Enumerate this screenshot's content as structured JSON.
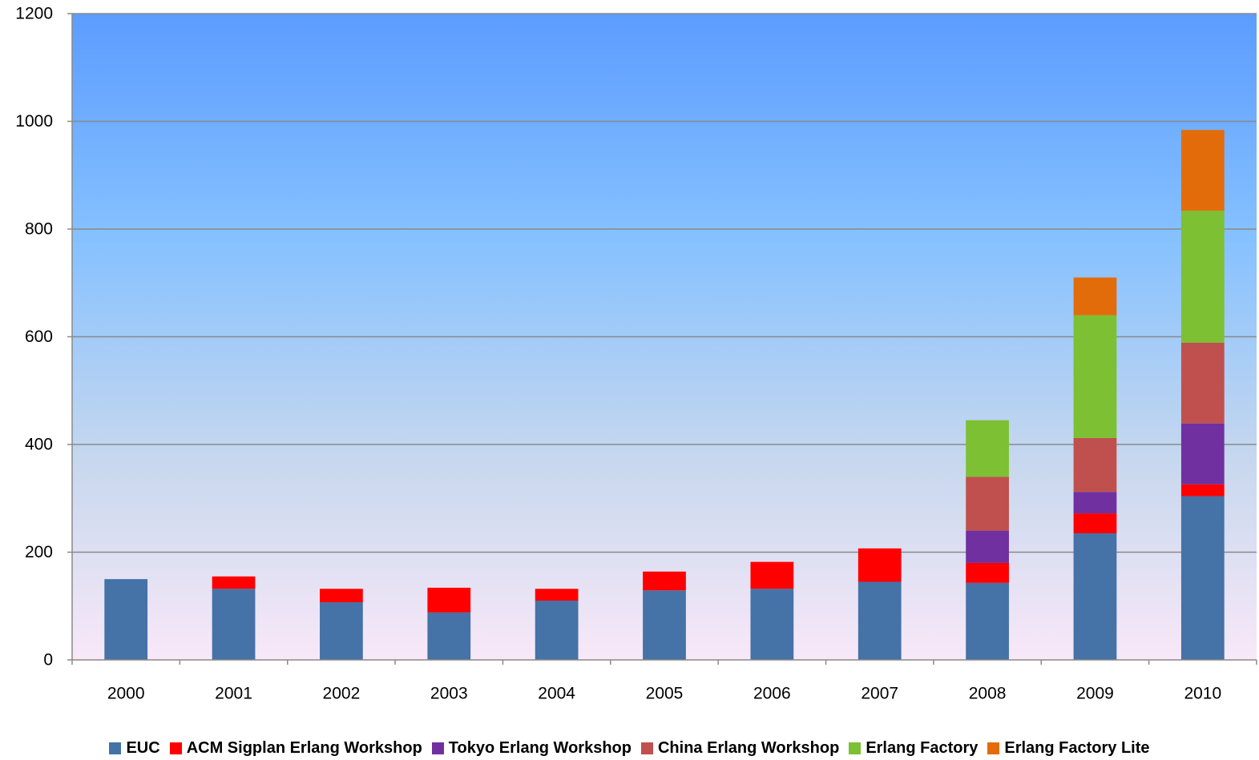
{
  "chart_data": {
    "type": "bar",
    "stacked": true,
    "categories": [
      "2000",
      "2001",
      "2002",
      "2003",
      "2004",
      "2005",
      "2006",
      "2007",
      "2008",
      "2009",
      "2010"
    ],
    "series": [
      {
        "name": "EUC",
        "color": "#4572A7",
        "values": [
          150,
          132,
          107,
          88,
          110,
          129,
          132,
          145,
          143,
          235,
          304
        ]
      },
      {
        "name": "ACM Sigplan Erlang Workshop",
        "color": "#FF0000",
        "values": [
          0,
          23,
          25,
          46,
          22,
          35,
          50,
          62,
          37,
          37,
          22
        ]
      },
      {
        "name": "Tokyo Erlang Workshop",
        "color": "#7030A0",
        "values": [
          0,
          0,
          0,
          0,
          0,
          0,
          0,
          0,
          60,
          40,
          113
        ]
      },
      {
        "name": "China Erlang Workshop",
        "color": "#C0504D",
        "values": [
          0,
          0,
          0,
          0,
          0,
          0,
          0,
          0,
          100,
          100,
          150
        ]
      },
      {
        "name": "Erlang Factory",
        "color": "#7DC033",
        "values": [
          0,
          0,
          0,
          0,
          0,
          0,
          0,
          0,
          105,
          228,
          245
        ]
      },
      {
        "name": "Erlang Factory Lite",
        "color": "#E36C0A",
        "values": [
          0,
          0,
          0,
          0,
          0,
          0,
          0,
          0,
          0,
          70,
          150
        ]
      }
    ],
    "y_ticks": [
      "0",
      "200",
      "400",
      "600",
      "800",
      "1000",
      "1200"
    ],
    "ylim": [
      0,
      1200
    ],
    "grid": true,
    "legend_position": "bottom",
    "title": "",
    "xlabel": "",
    "ylabel": ""
  }
}
